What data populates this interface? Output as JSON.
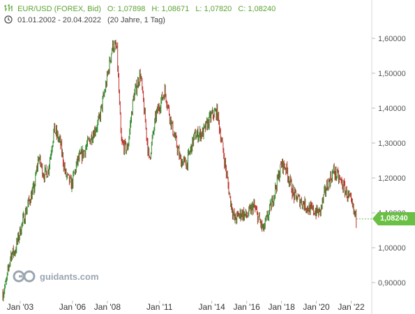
{
  "header": {
    "instrument": "EUR/USD (FOREX, Bid)",
    "open": "O: 1,07898",
    "high": "H: 1,08671",
    "low": "L: 1,07820",
    "close": "C: 1,08240",
    "period": "01.01.2002 - 20.04.2022",
    "range_note": "(20 Jahre, 1 Tag)",
    "header_color": "#5aa332"
  },
  "logo": {
    "text": "guidants.com",
    "color": "#9aa6b2"
  },
  "last_price": {
    "label": "1,08240",
    "value": 1.0824,
    "color": "#6abf45"
  },
  "chart_data": {
    "type": "line",
    "style": "ohlc-bars",
    "up_color": "#2e8b2e",
    "down_color": "#c0302a",
    "x_range": [
      2002.0,
      2022.3
    ],
    "ylim": [
      0.85,
      1.65
    ],
    "y_ticks": [
      0.9,
      1.0,
      1.1,
      1.2,
      1.3,
      1.4,
      1.5,
      1.6
    ],
    "y_tick_labels": [
      "0,90000",
      "1,00000",
      "1,10000",
      "1,20000",
      "1,30000",
      "1,40000",
      "1,50000",
      "1,60000"
    ],
    "x_ticks": [
      2003,
      2006,
      2008,
      2011,
      2014,
      2016,
      2018,
      2020,
      2022
    ],
    "x_tick_labels": [
      "Jan '03",
      "Jan '06",
      "Jan '08",
      "Jan '11",
      "Jan '14",
      "Jan '16",
      "Jan '18",
      "Jan '20",
      "Jan '22"
    ],
    "grid": false,
    "y_axis_position": "right",
    "x": [
      2002.0,
      2002.2,
      2002.45,
      2002.7,
      2003.0,
      2003.3,
      2003.55,
      2003.8,
      2004.05,
      2004.35,
      2004.6,
      2004.95,
      2005.3,
      2005.6,
      2005.95,
      2006.3,
      2006.6,
      2007.0,
      2007.5,
      2007.9,
      2008.3,
      2008.55,
      2008.8,
      2009.15,
      2009.5,
      2009.9,
      2010.4,
      2010.8,
      2011.3,
      2011.7,
      2012.2,
      2012.55,
      2013.0,
      2013.5,
      2014.0,
      2014.3,
      2014.7,
      2015.05,
      2015.3,
      2015.7,
      2016.0,
      2016.4,
      2016.95,
      2017.4,
      2018.0,
      2018.25,
      2018.7,
      2019.2,
      2019.6,
      2020.2,
      2020.55,
      2021.0,
      2021.4,
      2021.9,
      2022.3
    ],
    "values": [
      0.87,
      0.9,
      0.98,
      0.99,
      1.05,
      1.1,
      1.14,
      1.17,
      1.26,
      1.21,
      1.22,
      1.34,
      1.3,
      1.21,
      1.18,
      1.25,
      1.27,
      1.31,
      1.36,
      1.46,
      1.58,
      1.57,
      1.3,
      1.28,
      1.43,
      1.5,
      1.25,
      1.38,
      1.45,
      1.35,
      1.25,
      1.24,
      1.32,
      1.33,
      1.38,
      1.39,
      1.26,
      1.14,
      1.08,
      1.1,
      1.09,
      1.12,
      1.05,
      1.12,
      1.24,
      1.23,
      1.15,
      1.13,
      1.11,
      1.1,
      1.17,
      1.22,
      1.19,
      1.14,
      1.08
    ]
  }
}
